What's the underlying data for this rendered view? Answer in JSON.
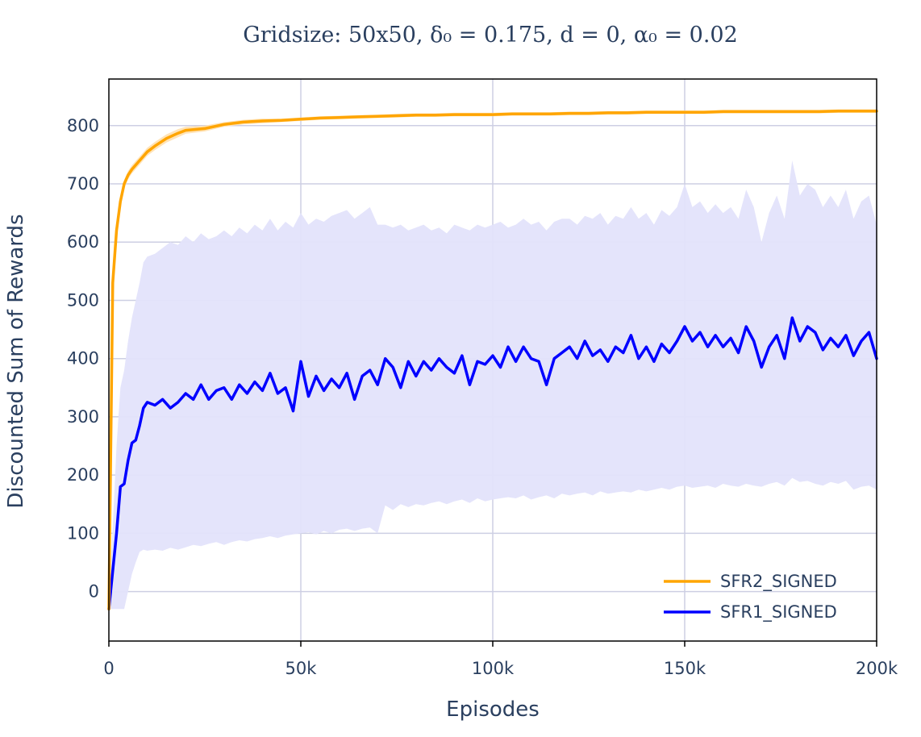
{
  "chart_data": {
    "type": "line",
    "title": "Gridsize: 50x50, δ₀ = 0.175, d = 0, α₀ = 0.02",
    "xlabel": "Episodes",
    "ylabel": "Discounted Sum of Rewards",
    "xlim": [
      0,
      200000
    ],
    "ylim": [
      -85,
      880
    ],
    "x_ticks": [
      {
        "value": 0,
        "label": "0"
      },
      {
        "value": 50000,
        "label": "50k"
      },
      {
        "value": 100000,
        "label": "100k"
      },
      {
        "value": 150000,
        "label": "150k"
      },
      {
        "value": 200000,
        "label": "200k"
      }
    ],
    "y_ticks": [
      {
        "value": 0,
        "label": "0"
      },
      {
        "value": 100,
        "label": "100"
      },
      {
        "value": 200,
        "label": "200"
      },
      {
        "value": 300,
        "label": "300"
      },
      {
        "value": 400,
        "label": "400"
      },
      {
        "value": 500,
        "label": "500"
      },
      {
        "value": 600,
        "label": "600"
      },
      {
        "value": 700,
        "label": "700"
      },
      {
        "value": 800,
        "label": "800"
      }
    ],
    "grid": true,
    "legend_position": "bottom-right",
    "series": [
      {
        "name": "SFR2_SIGNED",
        "color": "#ffa500",
        "band_color": "#ffe2b3",
        "x": [
          0,
          1000,
          2000,
          3000,
          4000,
          5000,
          6000,
          8000,
          10000,
          12000,
          15000,
          18000,
          20000,
          25000,
          30000,
          35000,
          40000,
          45000,
          50000,
          55000,
          60000,
          65000,
          70000,
          75000,
          80000,
          85000,
          90000,
          95000,
          100000,
          105000,
          110000,
          115000,
          120000,
          125000,
          130000,
          135000,
          140000,
          145000,
          150000,
          155000,
          160000,
          165000,
          170000,
          175000,
          180000,
          185000,
          190000,
          195000,
          200000
        ],
        "y": [
          -30,
          530,
          620,
          670,
          700,
          715,
          725,
          740,
          755,
          765,
          778,
          787,
          792,
          795,
          802,
          806,
          808,
          809,
          811,
          813,
          814,
          815,
          816,
          817,
          818,
          818,
          819,
          819,
          819,
          820,
          820,
          820,
          821,
          821,
          822,
          822,
          823,
          823,
          823,
          823,
          824,
          824,
          824,
          824,
          824,
          824,
          825,
          825,
          825
        ],
        "lower": [
          -30,
          520,
          612,
          663,
          693,
          708,
          718,
          733,
          748,
          758,
          771,
          780,
          786,
          790,
          798,
          802,
          804,
          806,
          808,
          810,
          811,
          812,
          813,
          814,
          815,
          815,
          816,
          816,
          816,
          817,
          817,
          817,
          818,
          818,
          819,
          819,
          820,
          820,
          820,
          820,
          821,
          821,
          821,
          821,
          821,
          821,
          822,
          822,
          822
        ],
        "upper": [
          -30,
          540,
          628,
          677,
          707,
          722,
          732,
          747,
          762,
          772,
          785,
          794,
          798,
          800,
          806,
          810,
          812,
          812,
          814,
          816,
          817,
          818,
          819,
          820,
          821,
          821,
          822,
          822,
          822,
          823,
          823,
          823,
          824,
          824,
          825,
          825,
          826,
          826,
          826,
          826,
          827,
          827,
          827,
          827,
          827,
          827,
          828,
          828,
          828
        ]
      },
      {
        "name": "SFR1_SIGNED",
        "color": "#0000ff",
        "band_color": "#e3e3fb",
        "x": [
          0,
          2000,
          3000,
          4000,
          5000,
          6000,
          7000,
          8000,
          9000,
          10000,
          12000,
          14000,
          16000,
          18000,
          20000,
          22000,
          24000,
          26000,
          28000,
          30000,
          32000,
          34000,
          36000,
          38000,
          40000,
          42000,
          44000,
          46000,
          48000,
          50000,
          52000,
          54000,
          56000,
          58000,
          60000,
          62000,
          64000,
          66000,
          68000,
          70000,
          72000,
          74000,
          76000,
          78000,
          80000,
          82000,
          84000,
          86000,
          88000,
          90000,
          92000,
          94000,
          96000,
          98000,
          100000,
          102000,
          104000,
          106000,
          108000,
          110000,
          112000,
          114000,
          116000,
          118000,
          120000,
          122000,
          124000,
          126000,
          128000,
          130000,
          132000,
          134000,
          136000,
          138000,
          140000,
          142000,
          144000,
          146000,
          148000,
          150000,
          152000,
          154000,
          156000,
          158000,
          160000,
          162000,
          164000,
          166000,
          168000,
          170000,
          172000,
          174000,
          176000,
          178000,
          180000,
          182000,
          184000,
          186000,
          188000,
          190000,
          192000,
          194000,
          196000,
          198000,
          200000
        ],
        "y": [
          -30,
          100,
          180,
          185,
          225,
          255,
          260,
          285,
          315,
          325,
          320,
          330,
          315,
          325,
          340,
          330,
          355,
          330,
          345,
          350,
          330,
          355,
          340,
          360,
          345,
          375,
          340,
          350,
          310,
          395,
          335,
          370,
          345,
          365,
          350,
          375,
          330,
          370,
          380,
          355,
          400,
          385,
          350,
          395,
          370,
          395,
          380,
          400,
          385,
          375,
          405,
          355,
          395,
          390,
          405,
          385,
          420,
          395,
          420,
          400,
          395,
          355,
          400,
          410,
          420,
          400,
          430,
          405,
          415,
          395,
          420,
          410,
          440,
          400,
          420,
          395,
          425,
          410,
          430,
          455,
          430,
          445,
          420,
          440,
          420,
          435,
          410,
          455,
          430,
          385,
          420,
          440,
          400,
          470,
          430,
          455,
          445,
          415,
          435,
          420,
          440,
          405,
          430,
          445,
          400
        ],
        "lower": [
          -30,
          -30,
          -30,
          -30,
          0,
          30,
          50,
          68,
          72,
          70,
          72,
          70,
          75,
          72,
          76,
          80,
          78,
          82,
          85,
          80,
          85,
          88,
          86,
          90,
          92,
          95,
          92,
          96,
          98,
          100,
          102,
          98,
          104,
          100,
          106,
          108,
          104,
          108,
          110,
          100,
          148,
          140,
          150,
          145,
          150,
          148,
          152,
          155,
          150,
          155,
          158,
          152,
          160,
          155,
          158,
          160,
          162,
          160,
          165,
          158,
          162,
          165,
          160,
          168,
          165,
          168,
          170,
          165,
          172,
          168,
          170,
          172,
          170,
          175,
          172,
          175,
          178,
          175,
          180,
          182,
          178,
          180,
          182,
          178,
          185,
          182,
          180,
          185,
          182,
          180,
          185,
          188,
          182,
          195,
          188,
          190,
          185,
          182,
          188,
          185,
          190,
          175,
          180,
          182,
          175
        ],
        "upper": [
          -30,
          250,
          350,
          380,
          430,
          470,
          500,
          530,
          565,
          575,
          580,
          590,
          600,
          595,
          610,
          600,
          615,
          605,
          610,
          620,
          610,
          625,
          615,
          630,
          620,
          640,
          620,
          635,
          625,
          650,
          630,
          640,
          635,
          645,
          650,
          655,
          640,
          650,
          660,
          630,
          630,
          625,
          630,
          620,
          625,
          630,
          620,
          625,
          615,
          630,
          625,
          620,
          630,
          625,
          630,
          635,
          625,
          630,
          640,
          630,
          635,
          620,
          635,
          640,
          640,
          630,
          645,
          640,
          650,
          630,
          645,
          640,
          660,
          640,
          650,
          630,
          655,
          645,
          660,
          700,
          660,
          670,
          650,
          665,
          650,
          660,
          640,
          690,
          660,
          600,
          650,
          680,
          640,
          740,
          680,
          700,
          690,
          660,
          680,
          660,
          690,
          640,
          670,
          680,
          630
        ]
      }
    ]
  }
}
